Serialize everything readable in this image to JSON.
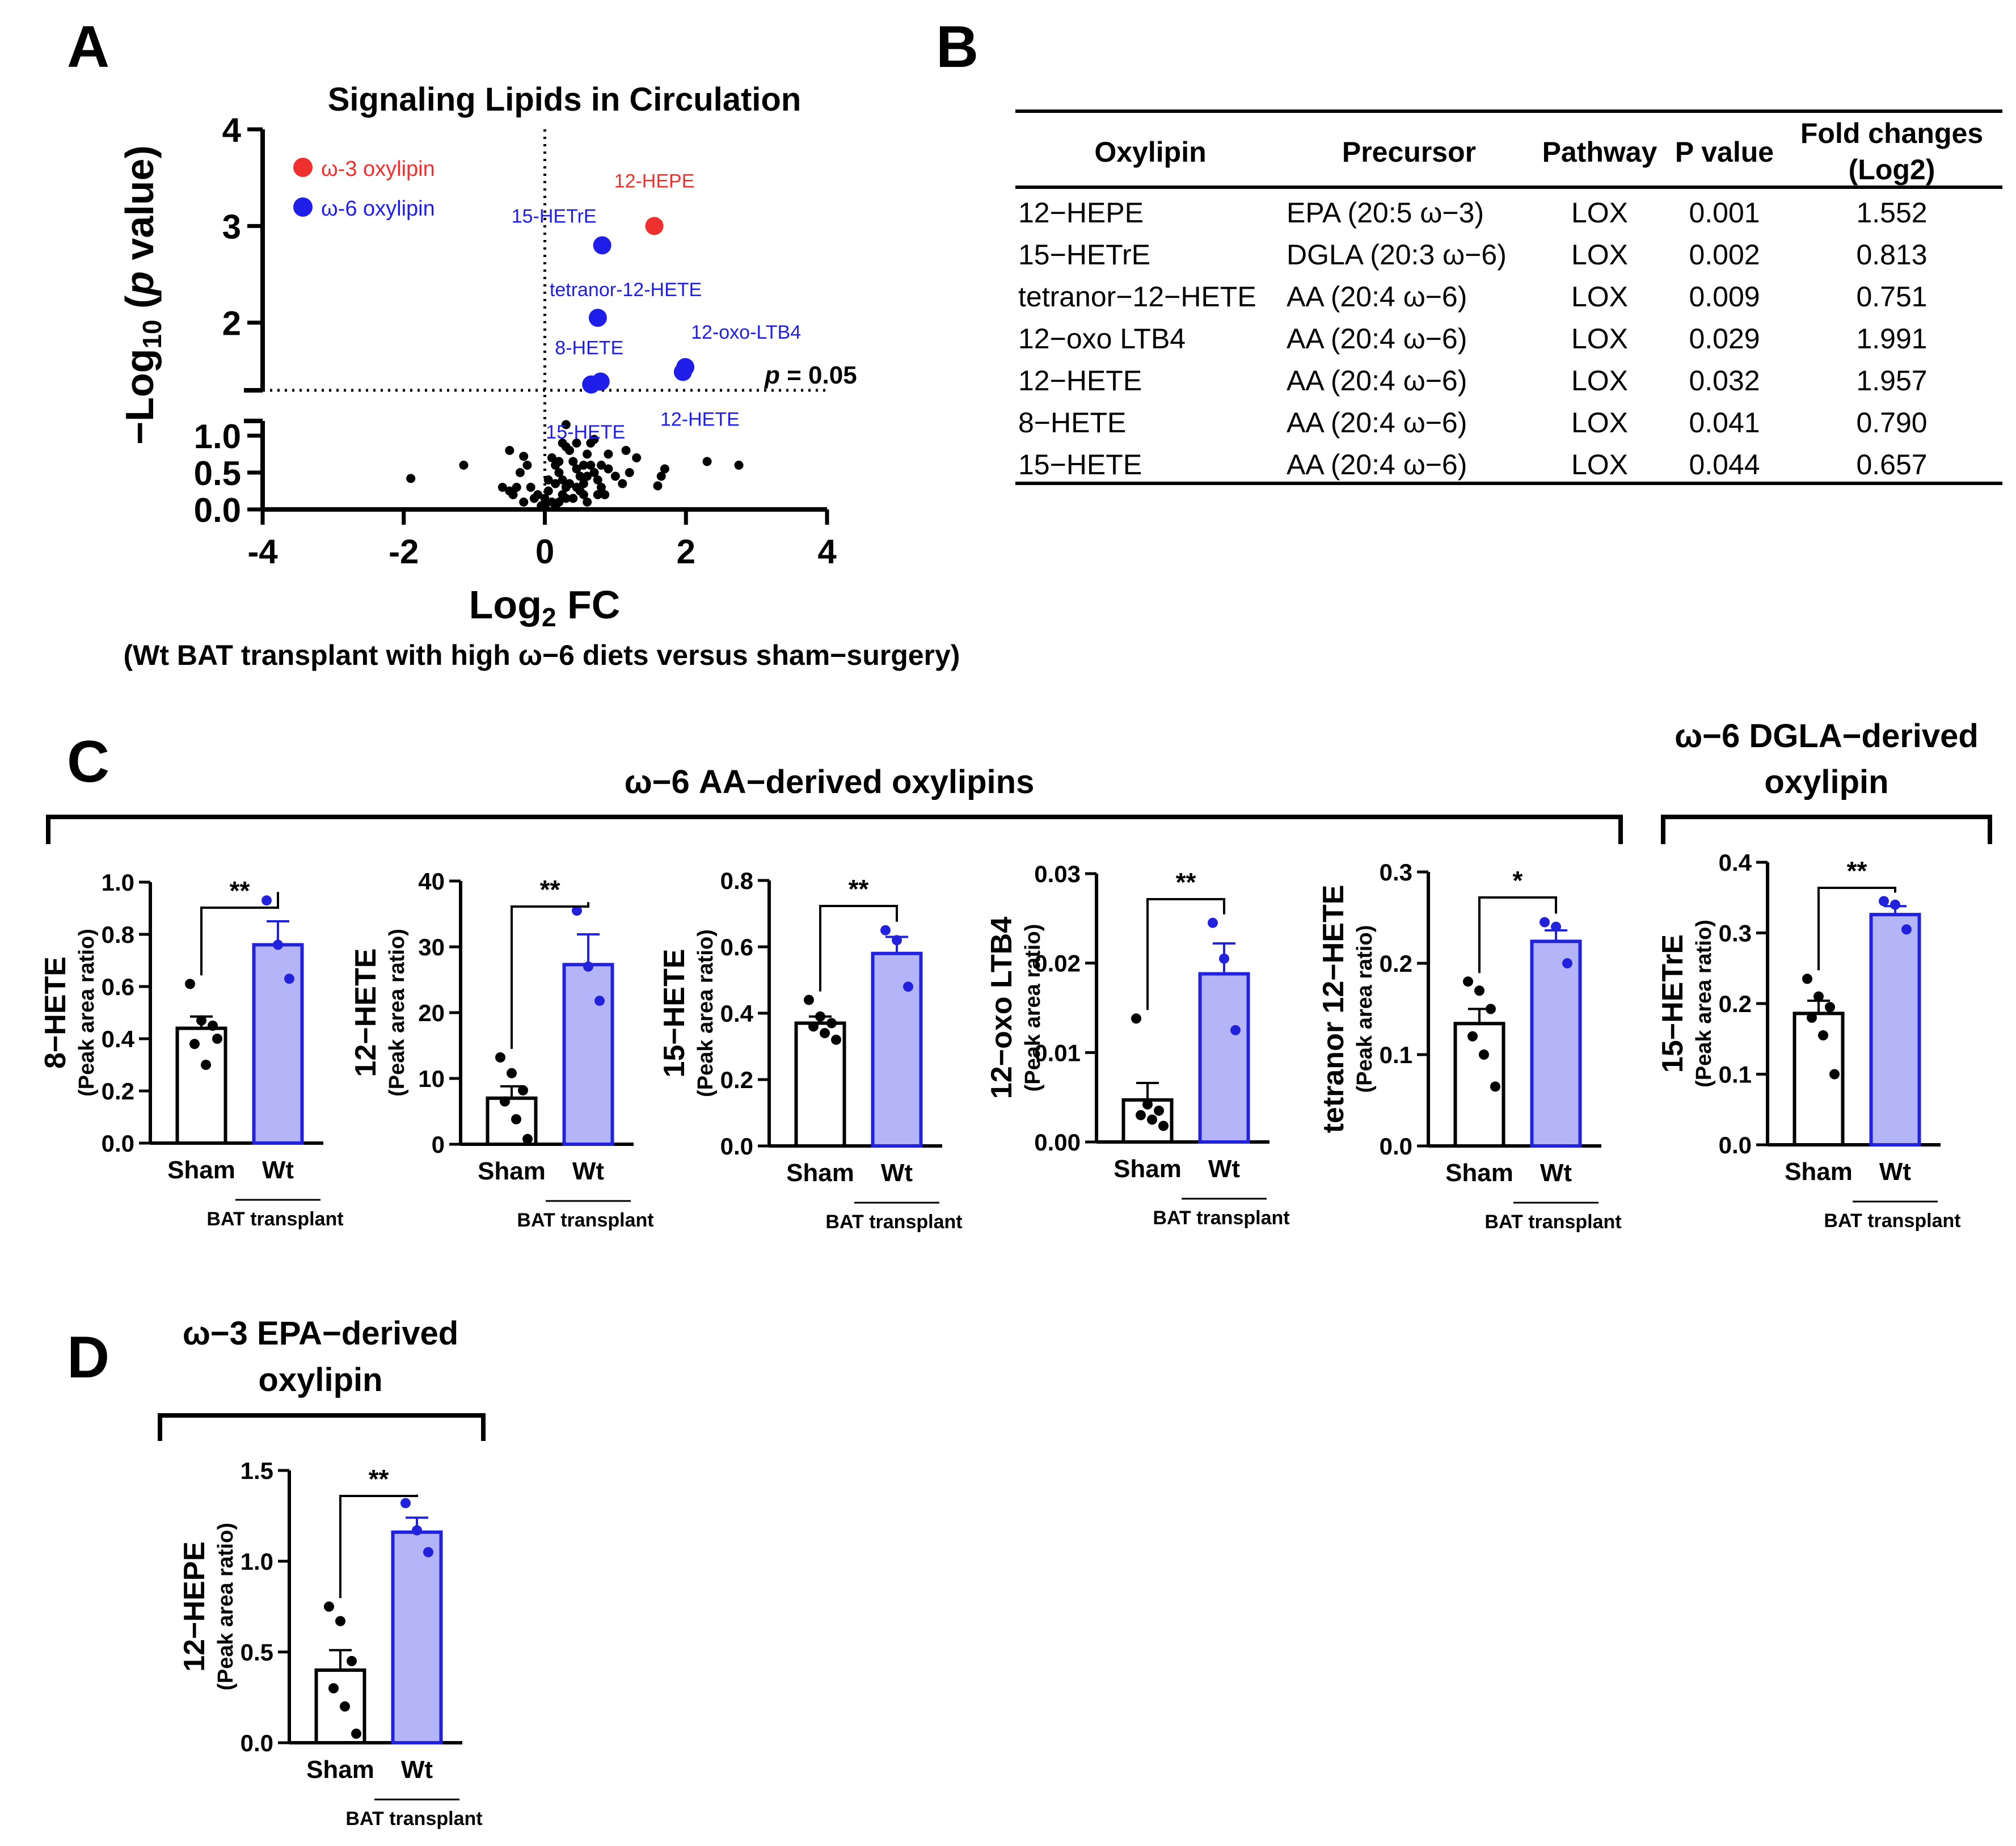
{
  "panel_letters": {
    "a": "A",
    "b": "B",
    "c": "C",
    "d": "D"
  },
  "colors": {
    "omega3": "#f0302f",
    "omega6": "#1e1ee8",
    "bar_fill": "#b4b4f8",
    "bar_edge": "#2222dd",
    "axis": "#000000"
  },
  "panel_a": {
    "caption": "(Wt BAT transplant with high  ω−6 diets versus sham−surgery)",
    "threshold_label": "= 0.05",
    "threshold_p": "p"
  },
  "panel_b": {
    "headers": [
      "Oxylipin",
      "Precursor",
      "Pathway",
      "P value",
      "Fold changes",
      "(Log2)"
    ],
    "rows": [
      [
        "12−HEPE",
        "EPA (20:5 ω−3)",
        "LOX",
        "0.001",
        "1.552"
      ],
      [
        "15−HETrE",
        "DGLA (20:3 ω−6)",
        "LOX",
        "0.002",
        "0.813"
      ],
      [
        "tetranor−12−HETE",
        "AA (20:4 ω−6)",
        "LOX",
        "0.009",
        "0.751"
      ],
      [
        "12−oxo LTB4",
        "AA (20:4 ω−6)",
        "LOX",
        "0.029",
        "1.991"
      ],
      [
        "12−HETE",
        "AA (20:4 ω−6)",
        "LOX",
        "0.032",
        "1.957"
      ],
      [
        "8−HETE",
        "AA (20:4 ω−6)",
        "LOX",
        "0.041",
        "0.790"
      ],
      [
        "15−HETE",
        "AA (20:4 ω−6)",
        "LOX",
        "0.044",
        "0.657"
      ]
    ]
  },
  "panel_c": {
    "group_aa": "ω−6 AA−derived oxylipins",
    "group_dgla_1": "ω−6 DGLA−derived",
    "group_dgla_2": "oxylipin"
  },
  "panel_d": {
    "group_1": "ω−3 EPA−derived",
    "group_2": "oxylipin"
  },
  "chart_data": [
    {
      "type": "scatter",
      "title": "Signaling Lipids in Circulation",
      "xlabel": "Log2 FC",
      "ylabel": "−Log10 (p value)",
      "xlim": [
        -4,
        4
      ],
      "xticks": [
        "-4",
        "-2",
        "0",
        "2",
        "4"
      ],
      "yticks_upper": [
        "2",
        "3",
        "4"
      ],
      "yticks_lower": [
        "0.0",
        "0.5",
        "1.0"
      ],
      "legend": [
        {
          "name": "ω-3 oxylipin",
          "color": "#f0302f"
        },
        {
          "name": "ω-6 oxylipin",
          "color": "#1e1ee8"
        }
      ],
      "labeled_points": [
        {
          "label": "12-HEPE",
          "x": 1.552,
          "y": 3.0,
          "series": "ω-3"
        },
        {
          "label": "15-HETrE",
          "x": 0.813,
          "y": 2.8,
          "series": "ω-6"
        },
        {
          "label": "tetranor-12-HETE",
          "x": 0.751,
          "y": 2.05,
          "series": "ω-6"
        },
        {
          "label": "12-oxo-LTB4",
          "x": 1.991,
          "y": 1.54,
          "series": "ω-6"
        },
        {
          "label": "12-HETE",
          "x": 1.957,
          "y": 1.49,
          "series": "ω-6"
        },
        {
          "label": "8-HETE",
          "x": 0.79,
          "y": 1.39,
          "series": "ω-6"
        },
        {
          "label": "15-HETE",
          "x": 0.657,
          "y": 1.36,
          "series": "ω-6"
        }
      ],
      "background_points": [
        [
          -1.9,
          0.42
        ],
        [
          -1.15,
          0.6
        ],
        [
          -0.5,
          0.8
        ],
        [
          -0.3,
          0.72
        ],
        [
          -0.25,
          0.6
        ],
        [
          -0.35,
          0.5
        ],
        [
          -0.4,
          0.3
        ],
        [
          -0.5,
          0.25
        ],
        [
          -0.2,
          0.3
        ],
        [
          -0.15,
          0.15
        ],
        [
          -0.05,
          0.05
        ],
        [
          0.0,
          0.15
        ],
        [
          0.05,
          0.25
        ],
        [
          0.1,
          0.7
        ],
        [
          0.15,
          0.6
        ],
        [
          0.2,
          0.5
        ],
        [
          0.25,
          0.4
        ],
        [
          0.3,
          0.3
        ],
        [
          0.35,
          0.8
        ],
        [
          0.3,
          0.85
        ],
        [
          0.4,
          0.65
        ],
        [
          0.45,
          0.55
        ],
        [
          0.5,
          0.45
        ],
        [
          0.55,
          0.35
        ],
        [
          0.6,
          0.75
        ],
        [
          0.65,
          0.6
        ],
        [
          0.7,
          0.5
        ],
        [
          0.75,
          0.4
        ],
        [
          0.8,
          0.3
        ],
        [
          0.85,
          0.2
        ],
        [
          0.9,
          0.55
        ],
        [
          1.0,
          0.45
        ],
        [
          1.1,
          0.35
        ],
        [
          1.15,
          0.8
        ],
        [
          1.3,
          0.7
        ],
        [
          1.7,
          0.55
        ],
        [
          1.65,
          0.45
        ],
        [
          1.6,
          0.32
        ],
        [
          2.3,
          0.65
        ],
        [
          2.75,
          0.6
        ],
        [
          0.2,
          0.1
        ],
        [
          0.15,
          0.05
        ],
        [
          0.25,
          0.2
        ],
        [
          0.4,
          0.15
        ],
        [
          0.5,
          0.25
        ],
        [
          0.6,
          0.1
        ],
        [
          0.05,
          0.4
        ],
        [
          0.35,
          0.35
        ],
        [
          0.55,
          0.6
        ],
        [
          0.65,
          0.9
        ],
        [
          0.7,
          0.95
        ],
        [
          0.3,
          1.15
        ],
        [
          0.1,
          0.1
        ],
        [
          0.45,
          0.9
        ],
        [
          -0.1,
          0.2
        ],
        [
          0.15,
          0.35
        ],
        [
          0.2,
          0.65
        ],
        [
          0.45,
          0.3
        ],
        [
          0.8,
          0.6
        ],
        [
          0.9,
          0.75
        ],
        [
          1.2,
          0.5
        ],
        [
          -0.6,
          0.3
        ],
        [
          -0.45,
          0.2
        ],
        [
          -0.3,
          0.1
        ],
        [
          0.0,
          0.05
        ],
        [
          0.3,
          0.15
        ],
        [
          0.55,
          0.2
        ],
        [
          0.75,
          0.2
        ],
        [
          0.25,
          0.9
        ],
        [
          0.6,
          0.45
        ]
      ]
    },
    {
      "type": "bar",
      "ylabel": "8−HETE",
      "ylabel_sub": "(Peak area ratio)",
      "categories": [
        "Sham",
        "Wt"
      ],
      "group_label": "BAT transplant",
      "sig": "**",
      "ylim": [
        0,
        1.0
      ],
      "yticks": [
        "0.0",
        "0.2",
        "0.4",
        "0.6",
        "0.8",
        "1.0"
      ],
      "means": [
        0.44,
        0.76
      ],
      "sem": [
        0.045,
        0.09
      ],
      "points": [
        [
          0.61,
          0.47,
          0.45,
          0.38,
          0.3,
          0.4
        ],
        [
          0.93,
          0.76,
          0.63
        ]
      ]
    },
    {
      "type": "bar",
      "ylabel": "12−HETE",
      "ylabel_sub": "(Peak area ratio)",
      "categories": [
        "Sham",
        "Wt"
      ],
      "group_label": "BAT transplant",
      "sig": "**",
      "ylim": [
        0,
        40
      ],
      "yticks": [
        "0",
        "10",
        "20",
        "30",
        "40"
      ],
      "means": [
        7.0,
        27.3
      ],
      "sem": [
        1.8,
        4.6
      ],
      "points": [
        [
          13.2,
          10.8,
          8.2,
          6.5,
          3.8,
          0.8
        ],
        [
          35.5,
          27.0,
          21.8
        ]
      ]
    },
    {
      "type": "bar",
      "ylabel": "15−HETE",
      "ylabel_sub": "(Peak area ratio)",
      "categories": [
        "Sham",
        "Wt"
      ],
      "group_label": "BAT transplant",
      "sig": "**",
      "ylim": [
        0,
        0.8
      ],
      "yticks": [
        "0.0",
        "0.2",
        "0.4",
        "0.6",
        "0.8"
      ],
      "means": [
        0.37,
        0.58
      ],
      "sem": [
        0.02,
        0.05
      ],
      "points": [
        [
          0.44,
          0.39,
          0.37,
          0.36,
          0.34,
          0.32
        ],
        [
          0.65,
          0.62,
          0.48
        ]
      ]
    },
    {
      "type": "bar",
      "ylabel": "12−oxo LTB4",
      "ylabel_sub": "(Peak area ratio)",
      "categories": [
        "Sham",
        "Wt"
      ],
      "group_label": "BAT transplant",
      "sig": "**",
      "ylim": [
        0,
        0.03
      ],
      "yticks": [
        "0.00",
        "0.01",
        "0.02",
        "0.03"
      ],
      "means": [
        0.0047,
        0.0188
      ],
      "sem": [
        0.0019,
        0.0034
      ],
      "points": [
        [
          0.0138,
          0.0042,
          0.0035,
          0.003,
          0.0025,
          0.0018
        ],
        [
          0.0245,
          0.0205,
          0.0125
        ]
      ]
    },
    {
      "type": "bar",
      "ylabel": "tetranor 12−HETE",
      "ylabel_sub": "(Peak area ratio)",
      "categories": [
        "Sham",
        "Wt"
      ],
      "group_label": "BAT transplant",
      "sig": "*",
      "ylim": [
        0,
        0.3
      ],
      "yticks": [
        "0.0",
        "0.1",
        "0.2",
        "0.3"
      ],
      "means": [
        0.134,
        0.224
      ],
      "sem": [
        0.016,
        0.012
      ],
      "points": [
        [
          0.18,
          0.17,
          0.15,
          0.12,
          0.1,
          0.065
        ],
        [
          0.245,
          0.24,
          0.2
        ]
      ]
    },
    {
      "type": "bar",
      "ylabel": "15−HETrE",
      "ylabel_sub": "(Peak area ratio)",
      "categories": [
        "Sham",
        "Wt"
      ],
      "group_label": "BAT transplant",
      "sig": "**",
      "ylim": [
        0,
        0.4
      ],
      "yticks": [
        "0.0",
        "0.1",
        "0.2",
        "0.3",
        "0.4"
      ],
      "means": [
        0.186,
        0.326
      ],
      "sem": [
        0.018,
        0.012
      ],
      "points": [
        [
          0.235,
          0.21,
          0.195,
          0.18,
          0.155,
          0.1
        ],
        [
          0.345,
          0.34,
          0.305
        ]
      ]
    },
    {
      "type": "bar",
      "ylabel": "12−HEPE",
      "ylabel_sub": "(Peak area ratio)",
      "categories": [
        "Sham",
        "Wt"
      ],
      "group_label": "BAT transplant",
      "sig": "**",
      "ylim": [
        0,
        1.5
      ],
      "yticks": [
        "0.0",
        "0.5",
        "1.0",
        "1.5"
      ],
      "means": [
        0.4,
        1.16
      ],
      "sem": [
        0.11,
        0.08
      ],
      "points": [
        [
          0.75,
          0.67,
          0.45,
          0.3,
          0.2,
          0.05
        ],
        [
          1.32,
          1.17,
          1.05
        ]
      ]
    }
  ]
}
